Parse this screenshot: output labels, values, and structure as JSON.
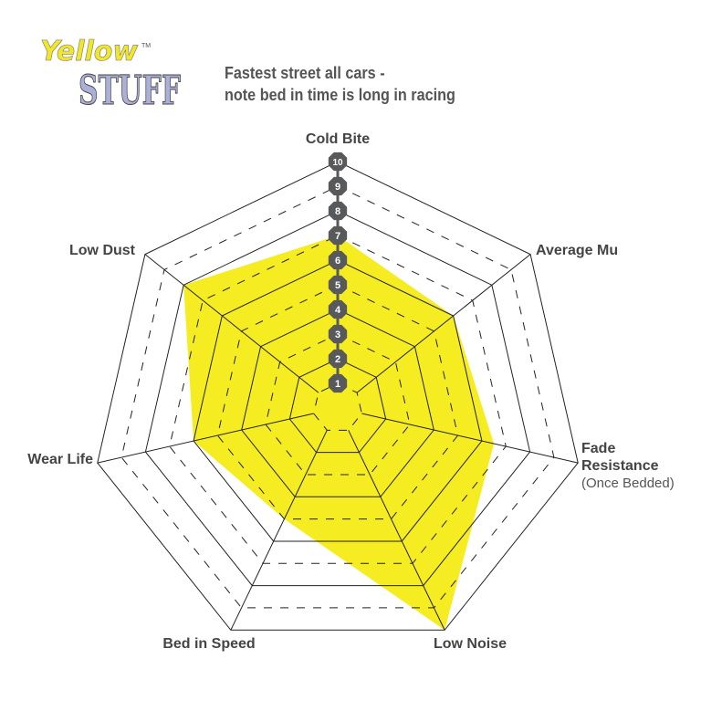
{
  "logo": {
    "line1": "Yellow",
    "line2": "STUFF",
    "tm": "TM"
  },
  "subtitle": {
    "line1": "Fastest street all cars -",
    "line2": "note bed in time is long in racing"
  },
  "colors": {
    "fill": "#f5ec21",
    "grid": "#222222",
    "marker": "#58595b",
    "logo_yellow": "#f0e62a",
    "logo_blue": "#aab0d8"
  },
  "chart_data": {
    "type": "radar",
    "axes": [
      {
        "label": "Cold Bite",
        "sub": ""
      },
      {
        "label": "Average Mu",
        "sub": ""
      },
      {
        "label": "Fade",
        "label2": "Resistance",
        "sub": "(Once Bedded)"
      },
      {
        "label": "Low Noise",
        "sub": ""
      },
      {
        "label": "Bed in Speed",
        "sub": ""
      },
      {
        "label": "Wear Life",
        "sub": ""
      },
      {
        "label": "Low Dust",
        "sub": ""
      }
    ],
    "values": [
      7,
      6,
      6.5,
      10,
      5,
      6,
      8
    ],
    "scale": [
      1,
      2,
      3,
      4,
      5,
      6,
      7,
      8,
      9,
      10
    ],
    "range": [
      0,
      10
    ],
    "grid": "solid on even levels, dashed on odd levels"
  }
}
